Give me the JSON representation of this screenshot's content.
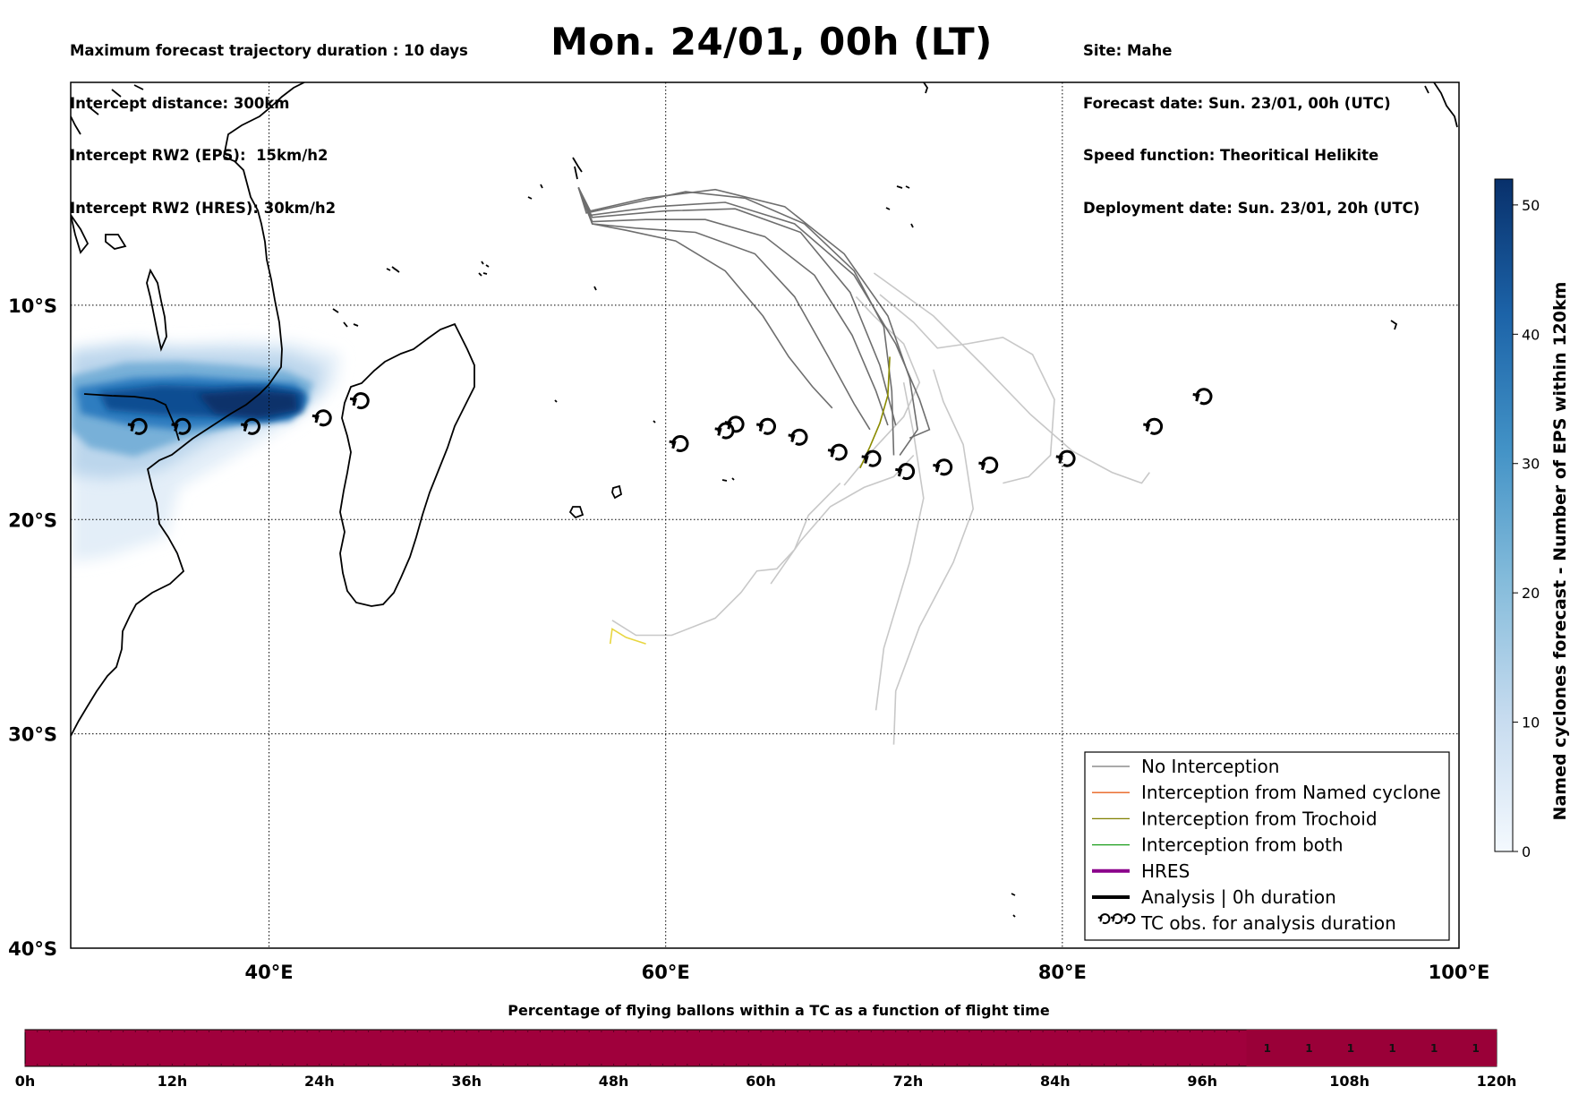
{
  "header": {
    "left_lines": [
      "Maximum forecast trajectory duration : 10 days",
      "Intercept distance: 300km",
      "Intercept RW2 (EPS):  15km/h2",
      "Intercept RW2 (HRES): 30km/h2"
    ],
    "right_lines": [
      "Site: Mahe",
      "Forecast date: Sun. 23/01, 00h (UTC)",
      "Speed function: Theoritical Helikite",
      "Deployment date: Sun. 23/01, 20h (UTC)"
    ],
    "title": "Mon. 24/01, 00h (LT)"
  },
  "map": {
    "lon_range": [
      30,
      100
    ],
    "lat_range": [
      -40,
      0.4
    ],
    "lon_ticks": [
      {
        "value": 40,
        "label": "40°E"
      },
      {
        "value": 60,
        "label": "60°E"
      },
      {
        "value": 80,
        "label": "80°E"
      },
      {
        "value": 100,
        "label": "100°E"
      }
    ],
    "lat_ticks": [
      {
        "value": -10,
        "label": "10°S"
      },
      {
        "value": -20,
        "label": "20°S"
      },
      {
        "value": -30,
        "label": "30°S"
      },
      {
        "value": -40,
        "label": "40°S"
      }
    ],
    "tc_obs": [
      [
        32.9,
        -16.0
      ],
      [
        35.1,
        -16.0
      ],
      [
        38.6,
        -16.0
      ],
      [
        42.2,
        -15.6
      ],
      [
        44.1,
        -14.8
      ],
      [
        60.2,
        -16.8
      ],
      [
        62.5,
        -16.2
      ],
      [
        63.0,
        -15.9
      ],
      [
        64.6,
        -16.0
      ],
      [
        66.2,
        -16.5
      ],
      [
        68.2,
        -17.2
      ],
      [
        69.9,
        -17.5
      ],
      [
        71.6,
        -18.1
      ],
      [
        73.5,
        -17.9
      ],
      [
        75.8,
        -17.8
      ],
      [
        79.7,
        -17.5
      ],
      [
        84.1,
        -16.0
      ],
      [
        86.6,
        -14.6
      ]
    ],
    "tracks_dark": [
      [
        [
          55.6,
          -4.5
        ],
        [
          56.0,
          -5.7
        ],
        [
          58.0,
          -5.3
        ],
        [
          61.0,
          -4.7
        ],
        [
          64.0,
          -5.0
        ],
        [
          67.0,
          -6.2
        ],
        [
          69.5,
          -8.4
        ],
        [
          71.0,
          -11.0
        ],
        [
          71.4,
          -14.0
        ],
        [
          71.5,
          -17.0
        ]
      ],
      [
        [
          55.6,
          -4.5
        ],
        [
          56.2,
          -5.6
        ],
        [
          59.0,
          -5.0
        ],
        [
          62.5,
          -4.6
        ],
        [
          66.0,
          -5.4
        ],
        [
          69.0,
          -7.6
        ],
        [
          71.2,
          -10.5
        ],
        [
          72.3,
          -13.4
        ],
        [
          72.7,
          -15.8
        ],
        [
          71.8,
          -17.0
        ]
      ],
      [
        [
          55.6,
          -4.5
        ],
        [
          56.2,
          -5.8
        ],
        [
          59.5,
          -5.4
        ],
        [
          63.0,
          -5.2
        ],
        [
          66.5,
          -6.2
        ],
        [
          69.5,
          -8.6
        ],
        [
          71.6,
          -11.8
        ],
        [
          72.8,
          -14.4
        ],
        [
          73.3,
          -15.8
        ],
        [
          72.3,
          -16.2
        ]
      ],
      [
        [
          55.6,
          -4.5
        ],
        [
          56.3,
          -5.9
        ],
        [
          60.0,
          -5.6
        ],
        [
          63.5,
          -5.5
        ],
        [
          66.8,
          -6.6
        ],
        [
          69.3,
          -9.4
        ],
        [
          70.8,
          -12.8
        ],
        [
          71.6,
          -15.6
        ]
      ],
      [
        [
          55.6,
          -4.5
        ],
        [
          56.3,
          -6.1
        ],
        [
          59.0,
          -6.0
        ],
        [
          62.0,
          -6.0
        ],
        [
          65.0,
          -6.8
        ],
        [
          67.5,
          -8.6
        ],
        [
          69.4,
          -11.4
        ],
        [
          70.6,
          -14.0
        ],
        [
          71.2,
          -15.6
        ]
      ],
      [
        [
          55.6,
          -4.5
        ],
        [
          56.3,
          -6.2
        ],
        [
          58.5,
          -6.4
        ],
        [
          61.5,
          -6.6
        ],
        [
          64.5,
          -7.6
        ],
        [
          66.5,
          -9.6
        ],
        [
          68.2,
          -12.4
        ],
        [
          69.5,
          -14.6
        ],
        [
          70.3,
          -15.8
        ]
      ],
      [
        [
          55.6,
          -4.5
        ],
        [
          56.3,
          -6.2
        ],
        [
          58.0,
          -6.5
        ],
        [
          60.5,
          -7.0
        ],
        [
          63.0,
          -8.4
        ],
        [
          64.9,
          -10.5
        ],
        [
          66.2,
          -12.4
        ],
        [
          67.4,
          -13.8
        ],
        [
          68.4,
          -14.8
        ]
      ]
    ],
    "tracks_light": [
      [
        [
          57.3,
          -24.7
        ],
        [
          58.5,
          -25.4
        ],
        [
          60.3,
          -25.4
        ],
        [
          62.5,
          -24.6
        ],
        [
          63.8,
          -23.4
        ],
        [
          64.6,
          -22.4
        ],
        [
          65.6,
          -22.3
        ],
        [
          66.5,
          -21.4
        ],
        [
          67.2,
          -19.8
        ],
        [
          68.8,
          -18.3
        ]
      ],
      [
        [
          69.0,
          -18.4
        ],
        [
          70.6,
          -16.6
        ],
        [
          72.0,
          -15.2
        ],
        [
          72.8,
          -13.6
        ],
        [
          72.0,
          -11.8
        ],
        [
          70.5,
          -10.5
        ],
        [
          69.6,
          -9.6
        ]
      ],
      [
        [
          65.3,
          -23.0
        ],
        [
          66.8,
          -21.0
        ],
        [
          68.3,
          -19.4
        ],
        [
          70.0,
          -18.5
        ],
        [
          71.5,
          -18.0
        ],
        [
          72.5,
          -17.0
        ]
      ],
      [
        [
          70.6,
          -28.9
        ],
        [
          71.0,
          -26.0
        ],
        [
          72.3,
          -22.0
        ],
        [
          73.0,
          -19.0
        ],
        [
          72.5,
          -16.0
        ],
        [
          72.0,
          -13.6
        ]
      ],
      [
        [
          71.5,
          -30.5
        ],
        [
          71.6,
          -28.0
        ],
        [
          72.8,
          -25.0
        ],
        [
          74.5,
          -22.0
        ],
        [
          75.5,
          -19.5
        ],
        [
          75.0,
          -16.5
        ],
        [
          74.0,
          -14.5
        ],
        [
          73.5,
          -13.0
        ]
      ],
      [
        [
          70.8,
          -9.5
        ],
        [
          72.5,
          -10.8
        ],
        [
          73.7,
          -12.0
        ],
        [
          75.2,
          -11.8
        ],
        [
          77.0,
          -11.5
        ],
        [
          78.5,
          -12.3
        ],
        [
          79.6,
          -14.4
        ],
        [
          79.4,
          -17.0
        ],
        [
          78.3,
          -18.0
        ],
        [
          77.0,
          -18.3
        ]
      ],
      [
        [
          70.5,
          -8.5
        ],
        [
          73.5,
          -10.5
        ],
        [
          76.0,
          -12.8
        ],
        [
          78.4,
          -15.1
        ],
        [
          80.5,
          -16.8
        ],
        [
          82.5,
          -17.8
        ],
        [
          84.0,
          -18.3
        ],
        [
          84.4,
          -17.8
        ]
      ]
    ],
    "track_trochoid": [
      [
        71.3,
        -12.4
      ],
      [
        71.2,
        -14.2
      ],
      [
        70.8,
        -15.5
      ],
      [
        70.3,
        -16.6
      ],
      [
        69.8,
        -17.6
      ]
    ],
    "track_yellow": [
      [
        57.2,
        -25.8
      ],
      [
        57.3,
        -25.1
      ],
      [
        58.0,
        -25.5
      ],
      [
        59.0,
        -25.8
      ]
    ]
  },
  "legend": {
    "items": [
      {
        "label": "No Interception",
        "color": "#777777",
        "width": 1.3
      },
      {
        "label": "Interception from Named cyclone",
        "color": "#e8601c",
        "width": 1.3
      },
      {
        "label": "Interception from Trochoid",
        "color": "#808000",
        "width": 1.3
      },
      {
        "label": "Interception from both",
        "color": "#1b9e1b",
        "width": 1.3
      },
      {
        "label": "HRES",
        "color": "#8b008b",
        "width": 4
      },
      {
        "label": "Analysis | 0h duration",
        "color": "#000000",
        "width": 4
      },
      {
        "label": "TC obs. for analysis duration",
        "color": "#000000",
        "width": 0
      }
    ]
  },
  "colorbar": {
    "label": "Named cyclones forecast - Number of EPS within 120km",
    "range": [
      0,
      52
    ],
    "ticks": [
      0,
      10,
      20,
      30,
      40,
      50
    ],
    "color_low": "#f2f7fd",
    "color_high": "#08306b"
  },
  "bottom_bar": {
    "title": "Percentage of flying ballons within a TC as a function of flight time",
    "fill_color": "#a0003c",
    "tick_labels": [
      "0h",
      "12h",
      "24h",
      "36h",
      "48h",
      "60h",
      "72h",
      "84h",
      "96h",
      "108h",
      "120h"
    ],
    "cell_values": [
      1,
      1,
      1,
      1,
      1,
      1
    ]
  }
}
